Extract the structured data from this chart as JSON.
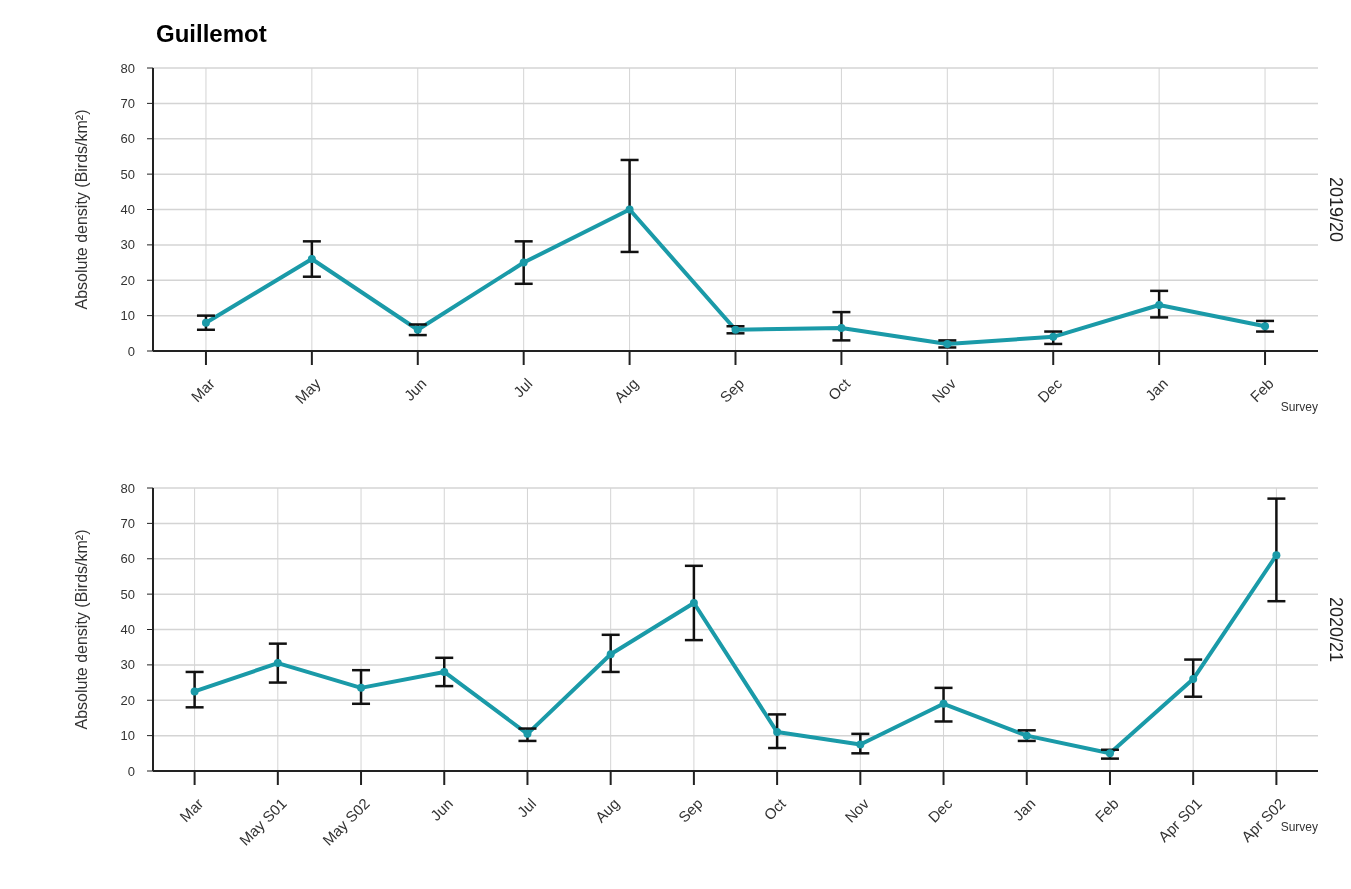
{
  "chart_data": [
    {
      "type": "line",
      "title": "Guillemot",
      "ylabel": "Absolute density (Birds/km²)",
      "xlabel": "Survey",
      "annotations": [
        "2019/20"
      ],
      "categories": [
        "Mar",
        "May",
        "Jun",
        "Jul",
        "Aug",
        "Sep",
        "Oct",
        "Nov",
        "Dec",
        "Jan",
        "Feb"
      ],
      "series": [
        {
          "color": "#1a9aa8",
          "values": [
            8,
            26,
            6,
            25,
            40,
            6,
            6.5,
            2,
            4,
            13,
            7
          ],
          "errors": [
            [
              6,
              10
            ],
            [
              21,
              31
            ],
            [
              4.5,
              7.5
            ],
            [
              19,
              31
            ],
            [
              28,
              54
            ],
            [
              5,
              7
            ],
            [
              3,
              11
            ],
            [
              1,
              3
            ],
            [
              2,
              5.5
            ],
            [
              9.5,
              17
            ],
            [
              5.5,
              8.5
            ]
          ]
        }
      ],
      "ylim": [
        0,
        80
      ],
      "yticks": [
        0,
        10,
        20,
        30,
        40,
        50,
        60,
        70,
        80
      ],
      "grid": true,
      "marker": "circle"
    },
    {
      "type": "line",
      "ylabel": "Absolute density (Birds/km²)",
      "xlabel": "Survey",
      "annotations": [
        "2020/21"
      ],
      "categories": [
        "Mar",
        "May S01",
        "May S02",
        "Jun",
        "Jul",
        "Aug",
        "Sep",
        "Oct",
        "Nov",
        "Dec",
        "Jan",
        "Feb",
        "Apr S01",
        "Apr S02"
      ],
      "series": [
        {
          "color": "#1a9aa8",
          "values": [
            22.5,
            30.5,
            23.5,
            28,
            10.5,
            33,
            47.5,
            11,
            7.5,
            19,
            10,
            5,
            26,
            61
          ],
          "errors": [
            [
              18,
              28
            ],
            [
              25,
              36
            ],
            [
              19,
              28.5
            ],
            [
              24,
              32
            ],
            [
              8.5,
              12
            ],
            [
              28,
              38.5
            ],
            [
              37,
              58
            ],
            [
              6.5,
              16
            ],
            [
              5,
              10.5
            ],
            [
              14,
              23.5
            ],
            [
              8.5,
              11.5
            ],
            [
              3.5,
              6
            ],
            [
              21,
              31.5
            ],
            [
              48,
              77
            ]
          ]
        }
      ],
      "ylim": [
        0,
        80
      ],
      "yticks": [
        0,
        10,
        20,
        30,
        40,
        50,
        60,
        70,
        80
      ],
      "grid": true,
      "marker": "circle"
    }
  ]
}
